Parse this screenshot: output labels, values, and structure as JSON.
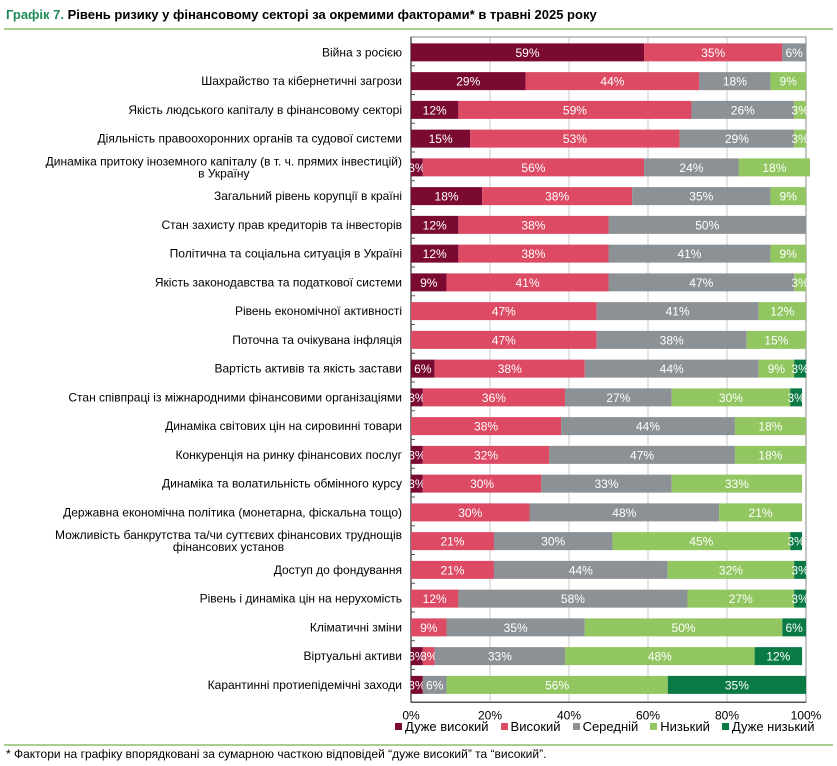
{
  "title_num": "Графік 7.",
  "title_text": " Рівень ризику у фінансовому секторі за окремими факторами* в травні 2025 року",
  "footnote": "* Фактори на графіку впорядковані за сумарною часткою відповідей “дуже високий” та “високий”.",
  "chart_data": {
    "type": "bar",
    "orientation": "horizontal",
    "stacked": true,
    "title": "Графік 7. Рівень ризику у фінансовому секторі за окремими факторами* в травні 2025 року",
    "xlabel": "",
    "ylabel": "",
    "xlim": [
      0,
      100
    ],
    "x_ticks": [
      "0%",
      "20%",
      "40%",
      "60%",
      "80%",
      "100%"
    ],
    "grid": true,
    "legend_position": "bottom",
    "categories": [
      [
        "Війна з росією"
      ],
      [
        "Шахрайство та кібернетичні загрози"
      ],
      [
        "Якість людського капіталу в фінансовому секторі"
      ],
      [
        "Діяльність правоохоронних органів та судової системи"
      ],
      [
        "Динаміка притоку іноземного капіталу (в т. ч. прямих інвестицій)",
        "в Україну"
      ],
      [
        "Загальний рівень корупції в країні"
      ],
      [
        "Стан захисту прав кредиторів та інвесторів"
      ],
      [
        "Політична та соціальна ситуація в Україні"
      ],
      [
        "Якість законодавства та податкової системи"
      ],
      [
        "Рівень економічної активності"
      ],
      [
        "Поточна та очікувана інфляція"
      ],
      [
        "Вартість активів та якість застави"
      ],
      [
        "Стан співпраці із міжнародними фінансовими організаціями"
      ],
      [
        "Динаміка світових цін на сировинні товари"
      ],
      [
        "Конкуренція на ринку фінансових послуг"
      ],
      [
        "Динаміка та волатильність обмінного курсу"
      ],
      [
        "Державна економічна політика (монетарна, фіскальна тощо)"
      ],
      [
        "Можливість банкрутства та/чи суттєвих фінансових труднощів",
        "фінансових установ"
      ],
      [
        "Доступ до фондування"
      ],
      [
        "Рівень і динаміка цін на нерухомість"
      ],
      [
        "Кліматичні зміни"
      ],
      [
        "Віртуальні активи"
      ],
      [
        "Карантинні протиепідемічні заходи"
      ]
    ],
    "series": [
      {
        "name": "Дуже високий",
        "color": "#7b0a33",
        "values": [
          59,
          29,
          12,
          15,
          3,
          18,
          12,
          12,
          9,
          0,
          0,
          6,
          3,
          0,
          3,
          3,
          0,
          0,
          0,
          0,
          0,
          3,
          3
        ]
      },
      {
        "name": "Високий",
        "color": "#dc4a63",
        "values": [
          35,
          44,
          59,
          53,
          56,
          38,
          38,
          38,
          41,
          47,
          47,
          38,
          36,
          38,
          32,
          30,
          30,
          21,
          21,
          12,
          9,
          3,
          0
        ]
      },
      {
        "name": "Середній",
        "color": "#8c9195",
        "values": [
          6,
          18,
          26,
          29,
          24,
          35,
          50,
          41,
          47,
          41,
          38,
          44,
          27,
          44,
          47,
          33,
          48,
          30,
          44,
          58,
          35,
          33,
          6
        ]
      },
      {
        "name": "Низький",
        "color": "#92c660",
        "values": [
          0,
          9,
          3,
          3,
          18,
          9,
          0,
          9,
          3,
          12,
          15,
          9,
          30,
          18,
          18,
          33,
          21,
          45,
          32,
          27,
          50,
          48,
          56
        ]
      },
      {
        "name": "Дуже низький",
        "color": "#0a7a45",
        "values": [
          0,
          0,
          0,
          0,
          0,
          0,
          0,
          0,
          0,
          0,
          0,
          3,
          3,
          0,
          0,
          0,
          0,
          3,
          3,
          3,
          6,
          12,
          35
        ]
      }
    ]
  }
}
